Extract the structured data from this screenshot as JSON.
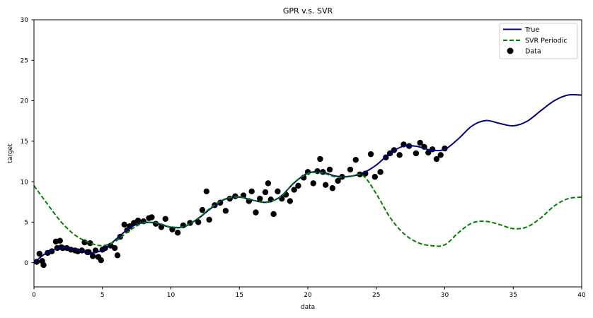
{
  "chart_data": {
    "type": "line",
    "title": "GPR v.s. SVR",
    "xlabel": "data",
    "ylabel": "target",
    "xlim": [
      0,
      40
    ],
    "ylim": [
      -3,
      30
    ],
    "x_ticks": [
      0,
      5,
      10,
      15,
      20,
      25,
      30,
      35,
      40
    ],
    "y_ticks": [
      0,
      5,
      10,
      15,
      20,
      25,
      30
    ],
    "grid": false,
    "legend_position": "top-right",
    "colors": {
      "true": "#000080",
      "svr": "#008000",
      "data": "#000000"
    },
    "series": [
      {
        "name": "True",
        "kind": "line",
        "x": [
          0,
          1,
          2,
          3,
          4,
          5,
          6,
          7,
          8,
          9,
          10,
          11,
          12,
          13,
          14,
          15,
          16,
          17,
          18,
          19,
          20,
          21,
          22,
          23,
          24,
          25,
          26,
          27,
          28,
          29,
          30,
          31,
          32,
          33,
          34,
          35,
          36,
          37,
          38,
          39,
          40
        ],
        "values": [
          0.0,
          1.3,
          1.85,
          1.65,
          1.2,
          1.55,
          2.9,
          4.3,
          4.95,
          4.85,
          4.35,
          4.45,
          5.45,
          6.8,
          7.85,
          8.1,
          7.7,
          7.45,
          8.15,
          9.85,
          11.05,
          11.2,
          10.7,
          10.65,
          11.05,
          12.05,
          13.5,
          14.4,
          14.35,
          13.9,
          14.0,
          15.3,
          16.9,
          17.55,
          17.2,
          16.9,
          17.45,
          18.75,
          20.0,
          20.7,
          20.7
        ]
      },
      {
        "name": "SVR Periodic",
        "kind": "dashed-line",
        "x": [
          0,
          1,
          2,
          3,
          4,
          5,
          6,
          7,
          8,
          9,
          10,
          11,
          12,
          13,
          14,
          15,
          16,
          17,
          18,
          19,
          20,
          21,
          22,
          23,
          24,
          25,
          26,
          27,
          28,
          29,
          30,
          31,
          32,
          33,
          34,
          35,
          36,
          37,
          38,
          39,
          40
        ],
        "values": [
          9.5,
          7.2,
          5.0,
          3.4,
          2.5,
          2.1,
          2.7,
          4.0,
          4.9,
          4.9,
          4.4,
          4.5,
          5.5,
          6.9,
          7.9,
          8.1,
          7.7,
          7.5,
          8.1,
          9.9,
          11.0,
          11.1,
          10.6,
          10.6,
          10.8,
          8.5,
          5.6,
          3.6,
          2.5,
          2.1,
          2.2,
          3.7,
          4.9,
          5.1,
          4.7,
          4.2,
          4.4,
          5.5,
          7.0,
          7.9,
          8.1
        ]
      },
      {
        "name": "Data",
        "kind": "scatter",
        "x": [
          0.2,
          0.4,
          0.6,
          0.7,
          1.0,
          1.3,
          1.6,
          1.7,
          1.9,
          2.0,
          2.1,
          2.4,
          2.7,
          3.0,
          3.2,
          3.5,
          3.7,
          3.9,
          4.0,
          4.1,
          4.3,
          4.5,
          4.7,
          4.9,
          5.0,
          5.2,
          5.6,
          5.9,
          6.1,
          6.3,
          6.6,
          6.8,
          7.0,
          7.3,
          7.6,
          8.0,
          8.4,
          8.6,
          8.9,
          9.3,
          9.6,
          10.1,
          10.5,
          10.9,
          11.4,
          12.0,
          12.3,
          12.6,
          12.8,
          13.2,
          13.6,
          14.0,
          14.3,
          14.7,
          15.3,
          15.7,
          15.9,
          16.2,
          16.5,
          16.9,
          17.1,
          17.3,
          17.5,
          17.8,
          18.1,
          18.4,
          18.7,
          19.0,
          19.3,
          19.7,
          20.0,
          20.4,
          20.7,
          20.9,
          21.1,
          21.3,
          21.6,
          21.8,
          22.2,
          22.5,
          23.1,
          23.5,
          23.8,
          24.2,
          24.6,
          24.9,
          25.3,
          25.7,
          26.0,
          26.3,
          26.7,
          27.0,
          27.4,
          27.9,
          28.2,
          28.5,
          28.8,
          29.1,
          29.4,
          29.7,
          30.0
        ],
        "values": [
          0.1,
          1.1,
          0.2,
          -0.3,
          1.2,
          1.4,
          2.6,
          1.8,
          2.7,
          1.9,
          1.8,
          1.8,
          1.6,
          1.5,
          1.4,
          1.5,
          2.5,
          1.3,
          1.3,
          2.4,
          0.8,
          1.5,
          0.7,
          0.3,
          1.6,
          1.8,
          2.1,
          1.8,
          0.9,
          3.2,
          4.7,
          4.0,
          4.5,
          4.9,
          5.2,
          5.1,
          5.5,
          5.6,
          4.8,
          4.4,
          5.4,
          4.1,
          3.7,
          4.6,
          4.9,
          5.0,
          6.5,
          8.8,
          5.3,
          7.1,
          7.4,
          6.4,
          7.9,
          8.2,
          8.3,
          7.6,
          8.8,
          6.2,
          7.9,
          8.7,
          9.8,
          7.8,
          6.0,
          8.8,
          7.9,
          8.4,
          7.6,
          9.0,
          9.5,
          10.5,
          11.2,
          9.8,
          11.3,
          12.8,
          11.2,
          9.6,
          11.5,
          9.2,
          10.1,
          10.6,
          11.5,
          12.7,
          10.9,
          11.0,
          13.4,
          10.6,
          11.2,
          13.0,
          13.5,
          13.9,
          13.3,
          14.6,
          14.4,
          13.5,
          14.8,
          14.3,
          13.6,
          14.0,
          12.8,
          13.3,
          14.1
        ]
      }
    ]
  }
}
